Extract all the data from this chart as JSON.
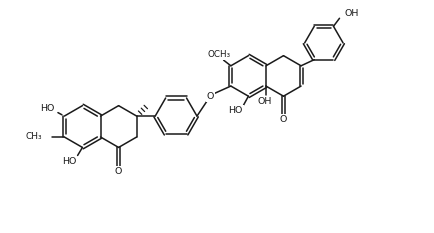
{
  "bg": "#ffffff",
  "lc": "#1a1a1a",
  "lw": 1.1,
  "fs": 6.8,
  "figsize": [
    4.34,
    2.33
  ],
  "dpi": 100,
  "xlim": [
    -0.3,
    10.3
  ],
  "ylim": [
    -0.2,
    5.6
  ]
}
